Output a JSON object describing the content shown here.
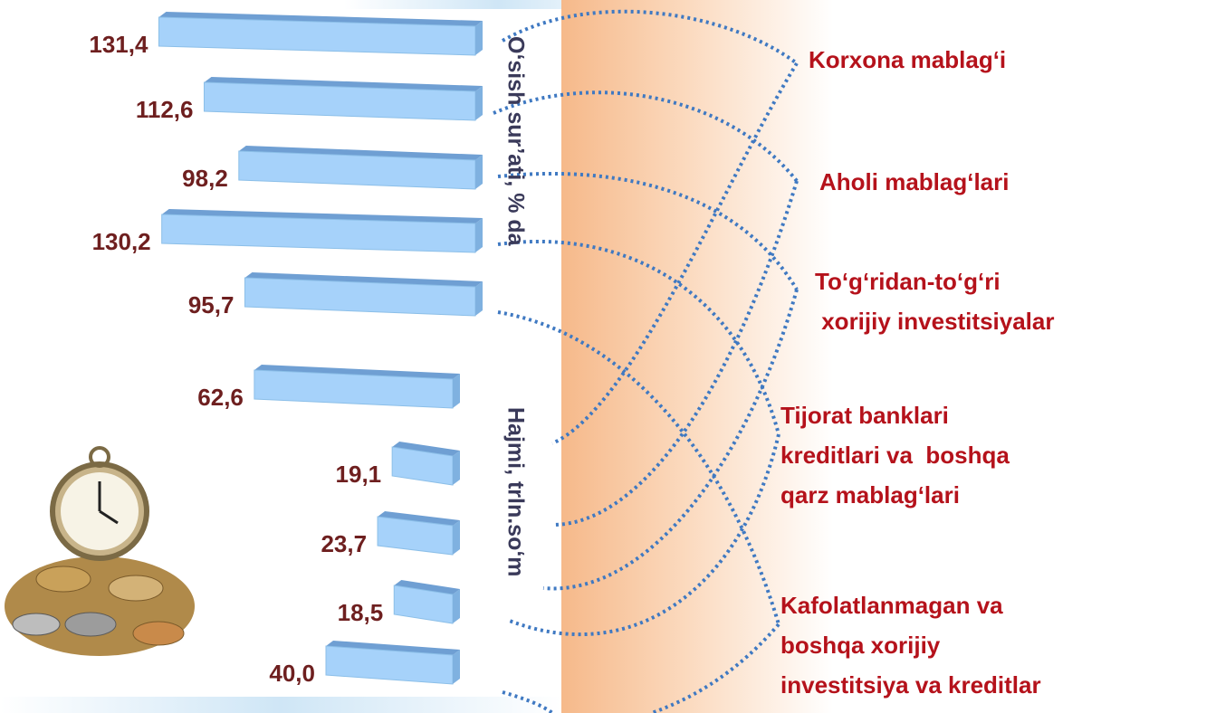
{
  "chart_data": [
    {
      "type": "bar",
      "orientation": "horizontal",
      "title": "O‘sish sur’ati, % da",
      "color": "#a6d2fa",
      "categories": [
        [
          "Korxona mablag‘i"
        ],
        [
          "Aholi mablag‘lari"
        ],
        [
          "To‘g‘ridan-to‘g‘ri",
          " xorijiy investitsiyalar"
        ],
        [
          "Tijorat banklari",
          "kreditlari va  boshqa",
          "qarz mablag‘lari"
        ],
        [
          "Kafolatlanmagan va",
          "boshqa xorijiy",
          "investitsiya va kreditlar"
        ]
      ],
      "values": [
        131.4,
        112.6,
        98.2,
        130.2,
        95.7
      ],
      "value_labels": [
        "131,4",
        "112,6",
        "98,2",
        "130,2",
        "95,7"
      ]
    },
    {
      "type": "bar",
      "orientation": "horizontal",
      "title": "Hajmi, trln.so‘m",
      "color": "#a6d2fa",
      "values": [
        62.6,
        19.1,
        23.7,
        18.5,
        40.0
      ],
      "value_labels": [
        "62,6",
        "19,1",
        "23,7",
        "18,5",
        "40,0"
      ]
    }
  ]
}
